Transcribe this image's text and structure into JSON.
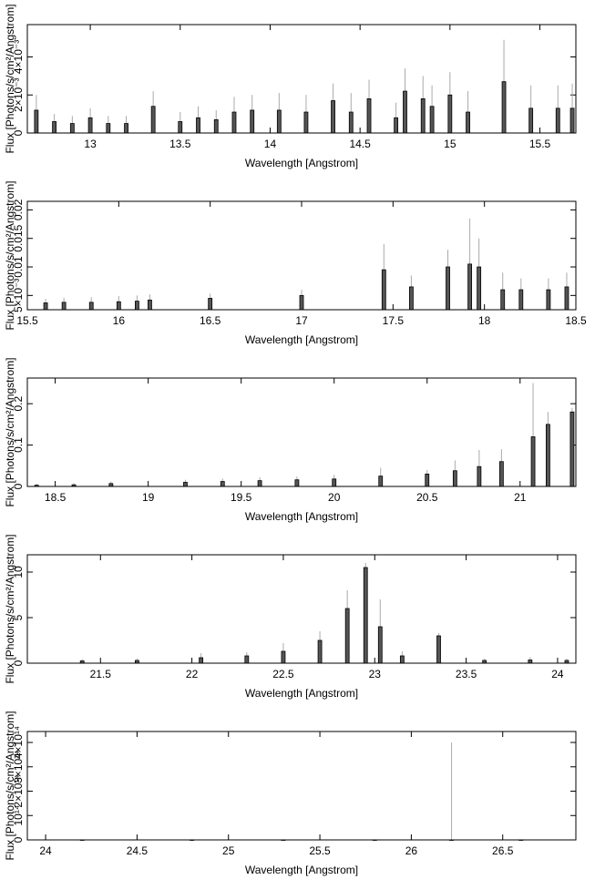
{
  "chart_data": [
    {
      "type": "errorbar",
      "xlabel": "Wavelength [Angstrom]",
      "ylabel": "Flux [Photons/s/cm²/Angstrom]",
      "xlim": [
        12.65,
        15.7
      ],
      "xticks": [
        13,
        13.5,
        14,
        14.5,
        15,
        15.5
      ],
      "ylim": [
        0,
        0.0057
      ],
      "yticks": [
        0,
        {
          "value": 0.002,
          "label": "2×10⁻³"
        },
        {
          "value": 0.004,
          "label": "4×10⁻³"
        }
      ],
      "x": [
        12.7,
        12.8,
        12.9,
        13.0,
        13.1,
        13.2,
        13.35,
        13.5,
        13.6,
        13.7,
        13.8,
        13.9,
        14.05,
        14.2,
        14.35,
        14.45,
        14.55,
        14.7,
        14.75,
        14.85,
        14.9,
        15.0,
        15.1,
        15.3,
        15.45,
        15.6,
        15.68
      ],
      "values": [
        0.0012,
        0.0006,
        0.0005,
        0.0008,
        0.0005,
        0.0005,
        0.0014,
        0.0006,
        0.0008,
        0.0007,
        0.0011,
        0.0012,
        0.0012,
        0.0011,
        0.0017,
        0.0011,
        0.0018,
        0.0008,
        0.0022,
        0.0018,
        0.0014,
        0.002,
        0.0011,
        0.0027,
        0.0013,
        0.0013,
        0.0013
      ],
      "errors": [
        0.0008,
        0.0004,
        0.0004,
        0.0005,
        0.0004,
        0.0004,
        0.0008,
        0.0005,
        0.0006,
        0.0005,
        0.0008,
        0.0008,
        0.0009,
        0.0009,
        0.0009,
        0.001,
        0.001,
        0.0008,
        0.0012,
        0.0012,
        0.0011,
        0.0012,
        0.0011,
        0.0022,
        0.0012,
        0.0012,
        0.0013
      ]
    },
    {
      "type": "errorbar",
      "xlabel": "Wavelength [Angstrom]",
      "ylabel": "Flux [Photons/s/cm²/Angstrom]",
      "xlim": [
        15.5,
        18.5
      ],
      "xticks": [
        15.5,
        16,
        16.5,
        17,
        17.5,
        18,
        18.5
      ],
      "ylim": [
        0.0025,
        0.0215
      ],
      "yticks": [
        {
          "value": 0.005,
          "label": "5×10⁻³"
        },
        0.01,
        0.015,
        0.02
      ],
      "x": [
        15.6,
        15.7,
        15.85,
        16.0,
        16.1,
        16.17,
        16.5,
        17.0,
        17.45,
        17.6,
        17.8,
        17.92,
        17.97,
        18.1,
        18.2,
        18.35,
        18.45
      ],
      "values": [
        0.0037,
        0.0038,
        0.0038,
        0.0039,
        0.004,
        0.0042,
        0.0045,
        0.005,
        0.0095,
        0.0065,
        0.01,
        0.0105,
        0.01,
        0.006,
        0.006,
        0.006,
        0.0065
      ],
      "errors": [
        0.0007,
        0.0008,
        0.0009,
        0.001,
        0.001,
        0.001,
        0.0008,
        0.001,
        0.0045,
        0.002,
        0.003,
        0.008,
        0.005,
        0.003,
        0.002,
        0.002,
        0.0025
      ]
    },
    {
      "type": "errorbar",
      "xlabel": "Wavelength [Angstrom]",
      "ylabel": "Flux [Photons/s/cm²/Angstrom]",
      "xlim": [
        18.35,
        21.3
      ],
      "xticks": [
        18.5,
        19,
        19.5,
        20,
        20.5,
        21
      ],
      "ylim": [
        0,
        0.262
      ],
      "yticks": [
        0,
        0.1,
        0.2
      ],
      "x": [
        18.4,
        18.6,
        18.8,
        19.2,
        19.4,
        19.6,
        19.8,
        20.0,
        20.25,
        20.5,
        20.65,
        20.78,
        20.9,
        21.07,
        21.15,
        21.28
      ],
      "values": [
        0.003,
        0.004,
        0.007,
        0.01,
        0.012,
        0.014,
        0.016,
        0.018,
        0.025,
        0.03,
        0.038,
        0.048,
        0.06,
        0.12,
        0.15,
        0.18
      ],
      "errors": [
        0.003,
        0.004,
        0.005,
        0.006,
        0.007,
        0.008,
        0.008,
        0.01,
        0.02,
        0.01,
        0.025,
        0.04,
        0.03,
        0.13,
        0.03,
        0.01
      ]
    },
    {
      "type": "errorbar",
      "xlabel": "Wavelength [Angstrom]",
      "ylabel": "Flux [Photons/s/cm²/Angstrom]",
      "xlim": [
        21.1,
        24.1
      ],
      "xticks": [
        21.5,
        22,
        22.5,
        23,
        23.5,
        24
      ],
      "ylim": [
        0,
        11.9
      ],
      "yticks": [
        0,
        5,
        10
      ],
      "x": [
        21.4,
        21.7,
        22.05,
        22.3,
        22.5,
        22.7,
        22.85,
        22.95,
        23.03,
        23.15,
        23.35,
        23.6,
        23.85,
        24.05
      ],
      "values": [
        0.25,
        0.3,
        0.6,
        0.8,
        1.3,
        2.5,
        6,
        10.5,
        4,
        0.8,
        3,
        0.3,
        0.35,
        0.3
      ],
      "errors": [
        0.2,
        0.2,
        0.5,
        0.4,
        0.9,
        1.0,
        2,
        0.5,
        3,
        0.5,
        0.3,
        0.2,
        0.3,
        0.2
      ]
    },
    {
      "type": "errorbar",
      "xlabel": "Wavelength [Angstrom]",
      "ylabel": "Flux [Photons/s/cm²/Angstrom]",
      "xlim": [
        23.9,
        26.9
      ],
      "xticks": [
        24,
        24.5,
        25,
        25.5,
        26,
        26.5
      ],
      "ylim": [
        0,
        445000000000000
      ],
      "yticks": [
        0,
        {
          "value": 100000000000000,
          "label": "10¹⁴"
        },
        {
          "value": 200000000000000,
          "label": "2×10¹⁴"
        },
        {
          "value": 300000000000000,
          "label": "3×10¹⁴"
        },
        {
          "value": 400000000000000,
          "label": "4×10¹⁴"
        }
      ],
      "x": [
        24.2,
        24.8,
        25.3,
        25.8,
        26.22,
        26.6
      ],
      "values": [
        0,
        0,
        0,
        0,
        0,
        0
      ],
      "errors": [
        0,
        0,
        0,
        0,
        400000000000000,
        0
      ]
    }
  ]
}
